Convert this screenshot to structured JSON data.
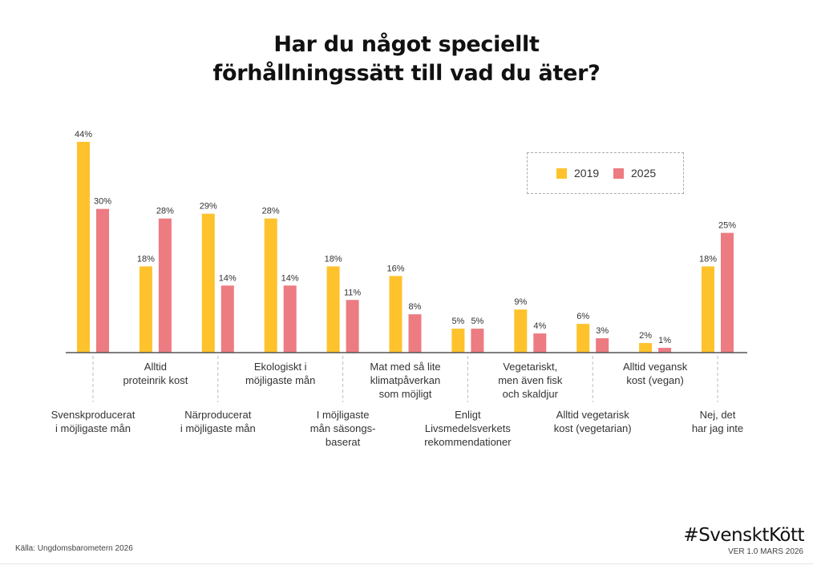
{
  "title_lines": [
    "Har du något speciellt",
    "förhållningssätt till vad du äter?"
  ],
  "colors": {
    "2019": "#FEC22C",
    "2025": "#EC7B82",
    "axis": "#555555",
    "separator": "#bbbbbb",
    "label": "#333333"
  },
  "legend": {
    "items": [
      {
        "label": "2019",
        "color": "#FEC22C"
      },
      {
        "label": "2025",
        "color": "#EC7B82"
      }
    ]
  },
  "footer": {
    "source": "Källa: Ungdomsbarometern 2026",
    "brand": "#SvensktKött",
    "version": "VER 1.0 MARS 2026"
  },
  "chart_data": {
    "type": "bar",
    "title": "Har du något speciellt förhållningssätt till vad du äter?",
    "xlabel": "",
    "ylabel": "",
    "ylim": [
      0,
      44
    ],
    "grid": false,
    "legend_position": "top-right",
    "categories": [
      [
        "Svenskproducerat",
        "i möjligaste mån"
      ],
      [
        "Alltid",
        "proteinrik kost"
      ],
      [
        "Närproducerat",
        "i möjligaste mån"
      ],
      [
        "Ekologiskt i",
        "möjligaste mån"
      ],
      [
        "I möjligaste",
        "mån säsongs-",
        "baserat"
      ],
      [
        "Mat med så lite",
        "klimatpåverkan",
        "som möjligt"
      ],
      [
        "Enligt",
        "Livsmedelsverkets",
        "rekommendationer"
      ],
      [
        "Vegetariskt,",
        "men även fisk",
        "och skaldjur"
      ],
      [
        "Alltid vegetarisk",
        "kost (vegetarian)"
      ],
      [
        "Alltid vegansk",
        "kost (vegan)"
      ],
      [
        "Nej, det",
        "har jag inte"
      ]
    ],
    "series": [
      {
        "name": "2019",
        "values": [
          44,
          18,
          29,
          28,
          18,
          16,
          5,
          9,
          6,
          2,
          18
        ],
        "labels": [
          "44%",
          "18%",
          "29%",
          "28%",
          "18%",
          "16%",
          "5%",
          "9%",
          "6%",
          "2%",
          "18%"
        ]
      },
      {
        "name": "2025",
        "values": [
          30,
          28,
          14,
          14,
          11,
          8,
          5,
          4,
          3,
          1,
          25
        ],
        "labels": [
          "30%",
          "28%",
          "14%",
          "14%",
          "11%",
          "8%",
          "5%",
          "4%",
          "3%",
          "1%",
          "25%"
        ]
      }
    ]
  }
}
